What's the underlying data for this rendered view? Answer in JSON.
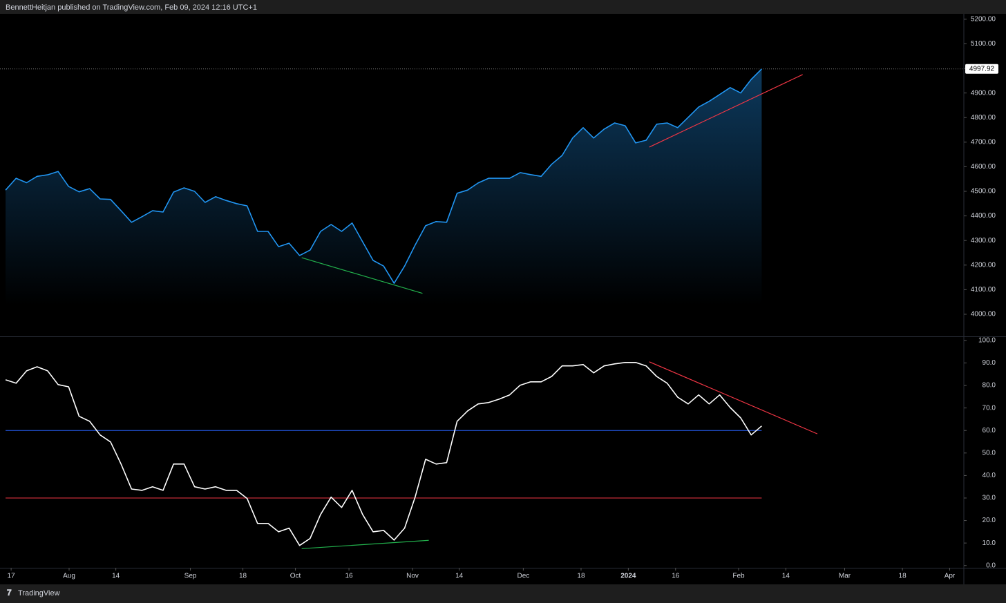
{
  "header": {
    "text": "BennettHeitjan published on TradingView.com, Feb 09, 2024 12:16 UTC+1"
  },
  "footer": {
    "brand": "TradingView"
  },
  "chart_data": [
    {
      "type": "area",
      "xlim": [
        -0.53,
        91.25
      ],
      "xticks": [
        {
          "value": 0.53,
          "label": "17"
        },
        {
          "value": 6.05,
          "label": "Aug"
        },
        {
          "value": 10.5,
          "label": "14"
        },
        {
          "value": 17.6,
          "label": "Sep"
        },
        {
          "value": 22.6,
          "label": "18"
        },
        {
          "value": 27.6,
          "label": "Oct"
        },
        {
          "value": 32.7,
          "label": "16"
        },
        {
          "value": 38.75,
          "label": "Nov"
        },
        {
          "value": 43.2,
          "label": "14"
        },
        {
          "value": 49.3,
          "label": "Dec"
        },
        {
          "value": 54.8,
          "label": "18"
        },
        {
          "value": 59.3,
          "label": "2024"
        },
        {
          "value": 63.8,
          "label": "16"
        },
        {
          "value": 69.8,
          "label": "Feb"
        },
        {
          "value": 74.3,
          "label": "14"
        },
        {
          "value": 79.9,
          "label": "Mar"
        },
        {
          "value": 85.4,
          "label": "18"
        },
        {
          "value": 89.9,
          "label": "Apr"
        }
      ],
      "ylim": [
        3910,
        5222
      ],
      "yticks": [
        {
          "value": 4000,
          "label": "4000.00"
        },
        {
          "value": 4100,
          "label": "4100.00"
        },
        {
          "value": 4200,
          "label": "4200.00"
        },
        {
          "value": 4300,
          "label": "4300.00"
        },
        {
          "value": 4400,
          "label": "4400.00"
        },
        {
          "value": 4500,
          "label": "4500.00"
        },
        {
          "value": 4600,
          "label": "4600.00"
        },
        {
          "value": 4700,
          "label": "4700.00"
        },
        {
          "value": 4800,
          "label": "4800.00"
        },
        {
          "value": 4900,
          "label": "4900.00"
        },
        {
          "value": 5000,
          "label": "5000.00"
        },
        {
          "value": 5100,
          "label": "5100.00"
        },
        {
          "value": 5200,
          "label": "5200.00"
        }
      ],
      "series": [
        {
          "color": "#2196f3",
          "values": [
            4505,
            4553,
            4535,
            4561,
            4567,
            4581,
            4520,
            4498,
            4511,
            4469,
            4467,
            4421,
            4374,
            4397,
            4421,
            4416,
            4497,
            4514,
            4500,
            4455,
            4478,
            4463,
            4450,
            4441,
            4337,
            4337,
            4275,
            4289,
            4239,
            4261,
            4337,
            4365,
            4337,
            4371,
            4295,
            4219,
            4196,
            4126,
            4196,
            4281,
            4360,
            4377,
            4374,
            4492,
            4505,
            4534,
            4553,
            4553,
            4553,
            4576,
            4568,
            4561,
            4610,
            4646,
            4717,
            4759,
            4717,
            4753,
            4778,
            4767,
            4697,
            4708,
            4773,
            4778,
            4759,
            4801,
            4843,
            4866,
            4894,
            4922,
            4900,
            4955,
            4997.92
          ]
        }
      ],
      "trend_lines": [
        {
          "color": "#22b14c",
          "points": [
            [
              28.2,
              4230
            ],
            [
              39.7,
              4085
            ]
          ]
        },
        {
          "color": "#f23645",
          "points": [
            [
              61.3,
              4680
            ],
            [
              75.9,
              4975
            ]
          ]
        }
      ]
    },
    {
      "type": "line",
      "ylim": [
        -1,
        101.5
      ],
      "yticks": [
        {
          "value": 0,
          "label": "0.0"
        },
        {
          "value": 10,
          "label": "10.0"
        },
        {
          "value": 20,
          "label": "20.0"
        },
        {
          "value": 30,
          "label": "30.0"
        },
        {
          "value": 40,
          "label": "40.0"
        },
        {
          "value": 50,
          "label": "50.0"
        },
        {
          "value": 60,
          "label": "60.0"
        },
        {
          "value": 70,
          "label": "70.0"
        },
        {
          "value": 80,
          "label": "80.0"
        },
        {
          "value": 90,
          "label": "90.0"
        },
        {
          "value": 100,
          "label": "100.0"
        }
      ],
      "series": [
        {
          "color": "#ffffff",
          "values": [
            82.5,
            81,
            86.5,
            88.3,
            86.5,
            80.4,
            79.4,
            66.3,
            64.1,
            58,
            54.9,
            45.1,
            34,
            33.4,
            35,
            33.4,
            45.1,
            45.1,
            35,
            34,
            35,
            33.4,
            33.4,
            29.8,
            18.7,
            18.7,
            15,
            16.6,
            8.9,
            12,
            22.7,
            30.4,
            25.8,
            33.4,
            22.7,
            15,
            15.6,
            11.3,
            16.6,
            30.4,
            47.2,
            45.1,
            45.7,
            64.1,
            68.7,
            71.8,
            72.4,
            73.9,
            75.8,
            80.1,
            81.6,
            81.6,
            84,
            88.7,
            88.7,
            89.3,
            85.6,
            88.7,
            89.6,
            90.2,
            90.2,
            88.7,
            84,
            81,
            74.8,
            71.8,
            75.8,
            71.8,
            75.8,
            70.2,
            65.6,
            58,
            62
          ]
        }
      ],
      "levels": [
        {
          "value": 60,
          "color": "#2962ff"
        },
        {
          "value": 30,
          "color": "#f23645"
        }
      ],
      "trend_lines": [
        {
          "color": "#22b14c",
          "points": [
            [
              28.2,
              7.5
            ],
            [
              40.3,
              11.2
            ]
          ]
        },
        {
          "color": "#f23645",
          "points": [
            [
              61.3,
              90.5
            ],
            [
              77.3,
              58.5
            ]
          ]
        }
      ]
    }
  ]
}
